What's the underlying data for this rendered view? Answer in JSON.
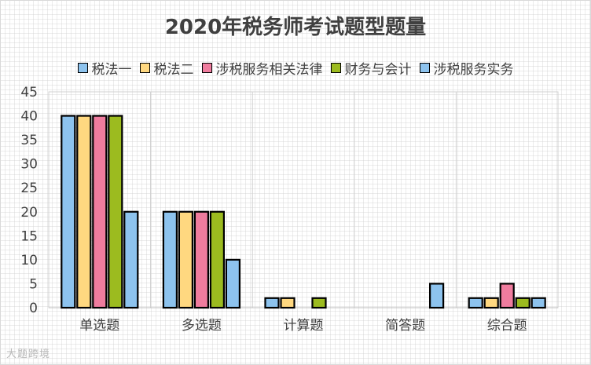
{
  "chart_data": {
    "type": "bar",
    "title": "2020年税务师考试题型题量",
    "categories": [
      "单选题",
      "多选题",
      "计算题",
      "简答题",
      "综合题"
    ],
    "series": [
      {
        "name": "税法一",
        "color": "#8dc3ee",
        "values": [
          40,
          20,
          2,
          0,
          2
        ]
      },
      {
        "name": "税法二",
        "color": "#ffd880",
        "values": [
          40,
          20,
          2,
          0,
          2
        ]
      },
      {
        "name": "涉税服务相关法律",
        "color": "#ef7c9e",
        "values": [
          40,
          20,
          0,
          0,
          5
        ]
      },
      {
        "name": "财务与会计",
        "color": "#9cbb1f",
        "values": [
          40,
          20,
          2,
          0,
          2
        ]
      },
      {
        "name": "涉税服务实务",
        "color": "#8dc3ee",
        "values": [
          20,
          10,
          0,
          5,
          2
        ]
      }
    ],
    "ylim": [
      0,
      45
    ],
    "yticks": [
      0,
      5,
      10,
      15,
      20,
      25,
      30,
      35,
      40,
      45
    ],
    "grid": "vertical-separators",
    "legend_position": "top"
  },
  "watermark_text": "大题跨境"
}
